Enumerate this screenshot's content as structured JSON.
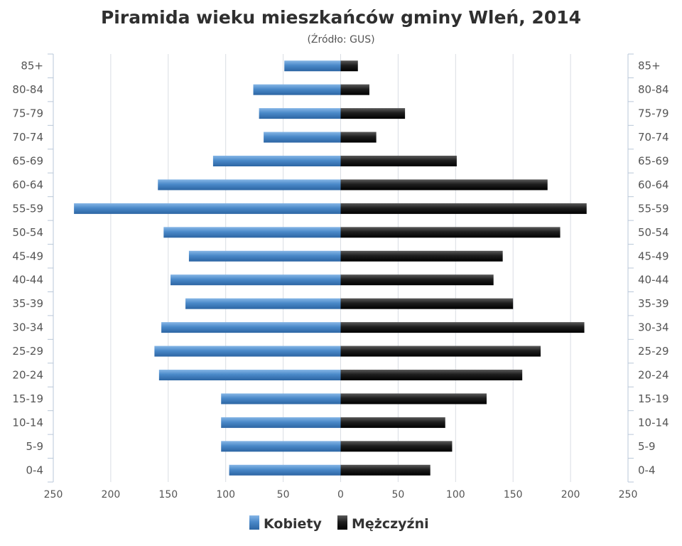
{
  "colors": {
    "women": "#3f7fc1",
    "men": "#1c1c1c",
    "grid": "#d9dde3",
    "axis": "#b8c7d8"
  },
  "chart_data": {
    "type": "bar",
    "orientation": "horizontal-pyramid",
    "title": "Piramida wieku mieszkańców gminy Wleń, 2014",
    "subtitle": "(Źródło: GUS)",
    "categories": [
      "85+",
      "80-84",
      "75-79",
      "70-74",
      "65-69",
      "60-64",
      "55-59",
      "50-54",
      "45-49",
      "40-44",
      "35-39",
      "30-34",
      "25-29",
      "20-24",
      "15-19",
      "10-14",
      "5-9",
      "0-4"
    ],
    "series": [
      {
        "name": "Kobiety",
        "side": "left",
        "values": [
          49,
          76,
          71,
          67,
          111,
          159,
          232,
          154,
          132,
          148,
          135,
          156,
          162,
          158,
          104,
          104,
          104,
          97
        ]
      },
      {
        "name": "Mężczyźni",
        "side": "right",
        "values": [
          15,
          25,
          56,
          31,
          101,
          180,
          214,
          191,
          141,
          133,
          150,
          212,
          174,
          158,
          127,
          91,
          97,
          78
        ]
      }
    ],
    "xlim": [
      -250,
      250
    ],
    "x_ticks": [
      -250,
      -200,
      -150,
      -100,
      -50,
      0,
      50,
      100,
      150,
      200,
      250
    ],
    "x_tick_labels": [
      "250",
      "200",
      "150",
      "100",
      "50",
      "0",
      "50",
      "100",
      "150",
      "200",
      "250"
    ],
    "grid": true,
    "legend": "bottom-center"
  }
}
